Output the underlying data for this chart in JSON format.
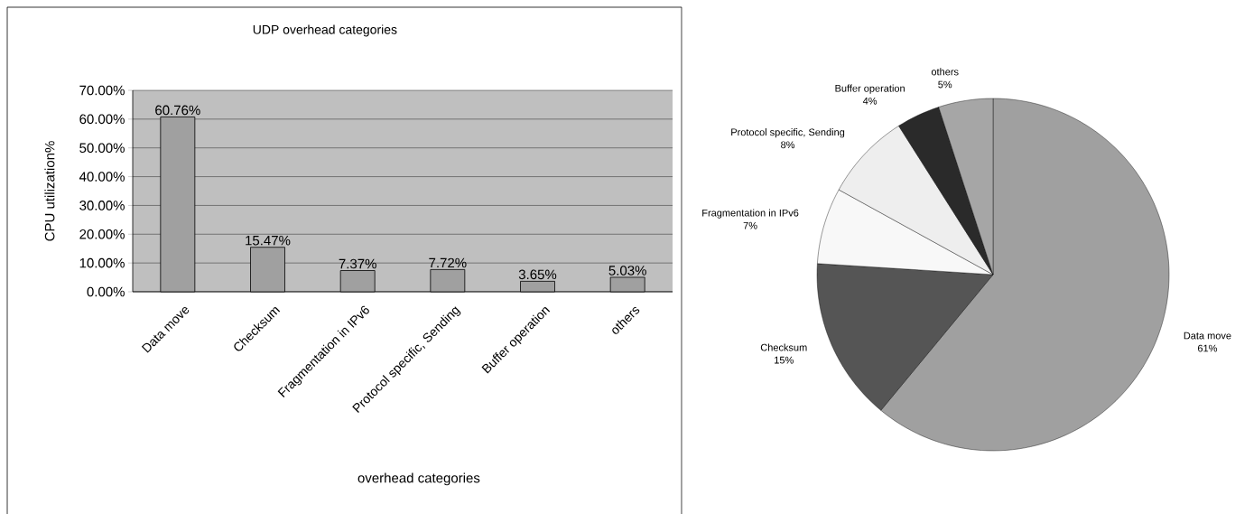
{
  "chart_data": [
    {
      "type": "bar",
      "title": "UDP overhead categories",
      "xlabel": "overhead categories",
      "ylabel": "CPU utilization%",
      "categories": [
        "Data move",
        "Checksum",
        "Fragmentation in IPv6",
        "Protocol specific, Sending",
        "Buffer operation",
        "others"
      ],
      "values": [
        60.76,
        15.47,
        7.37,
        7.72,
        3.65,
        5.03
      ],
      "value_labels": [
        "60.76%",
        "15.47%",
        "7.37%",
        "7.72%",
        "3.65%",
        "5.03%"
      ],
      "color": "#a0a0a0",
      "ylim": [
        0,
        70
      ],
      "yticks": [
        {
          "value": 0,
          "label": "0.00%"
        },
        {
          "value": 10,
          "label": "10.00%"
        },
        {
          "value": 20,
          "label": "20.00%"
        },
        {
          "value": 30,
          "label": "30.00%"
        },
        {
          "value": 40,
          "label": "40.00%"
        },
        {
          "value": 50,
          "label": "50.00%"
        },
        {
          "value": 60,
          "label": "60.00%"
        },
        {
          "value": 70,
          "label": "70.00%"
        }
      ],
      "grid": "y"
    },
    {
      "type": "pie",
      "categories": [
        "Data move",
        "Checksum",
        "Fragmentation in IPv6",
        "Protocol specific, Sending",
        "Buffer operation",
        "others"
      ],
      "values": [
        61,
        15,
        7,
        8,
        4,
        5
      ],
      "value_labels": [
        "61%",
        "15%",
        "7%",
        "8%",
        "4%",
        "5%"
      ],
      "colors": [
        "#a0a0a0",
        "#555555",
        "#f8f8f8",
        "#eeeeee",
        "#2a2a2a",
        "#a6a6a6"
      ]
    }
  ]
}
